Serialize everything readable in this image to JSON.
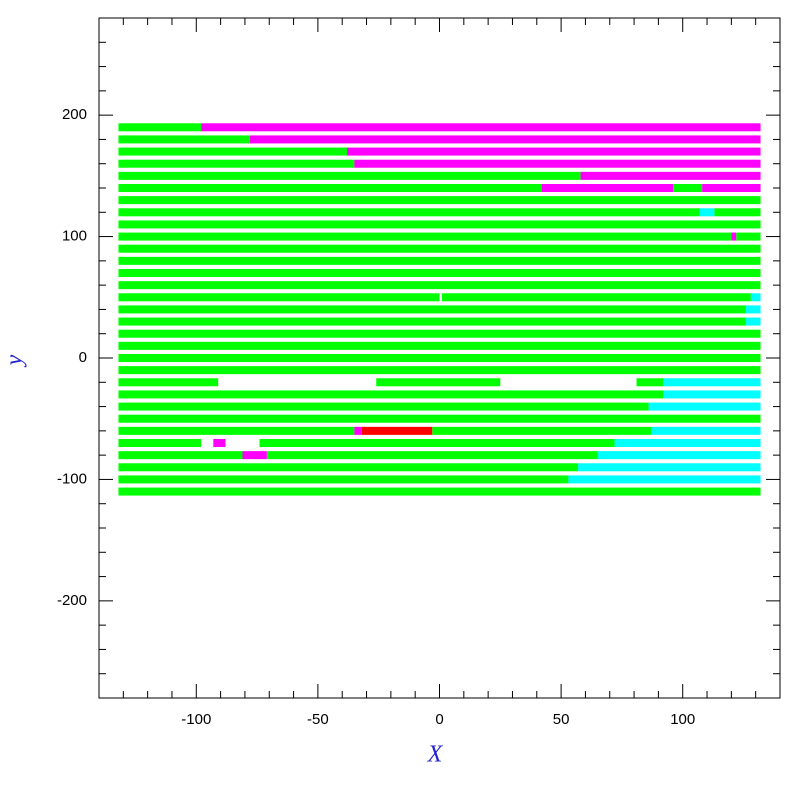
{
  "chart_data": {
    "type": "segment",
    "xlabel": "X",
    "ylabel": "y",
    "xlim": [
      -140,
      140
    ],
    "ylim": [
      -280,
      280
    ],
    "xticks": [
      -100,
      -50,
      0,
      50,
      100
    ],
    "yticks": [
      -200,
      -100,
      0,
      100,
      200
    ],
    "xminorticks": [
      -130,
      -120,
      -110,
      -90,
      -80,
      -70,
      -60,
      -40,
      -30,
      -20,
      -10,
      10,
      20,
      30,
      40,
      60,
      70,
      80,
      90,
      110,
      120,
      130
    ],
    "yminorticks": [
      -260,
      -240,
      -220,
      -180,
      -160,
      -140,
      -120,
      -80,
      -60,
      -40,
      -20,
      20,
      40,
      60,
      80,
      120,
      140,
      160,
      180,
      220,
      240,
      260
    ],
    "series": [
      {
        "color": "#00ff00",
        "segments": [
          [
            190,
            -132,
            -98
          ],
          [
            180,
            -132,
            -78
          ],
          [
            170,
            -132,
            -38
          ],
          [
            160,
            -132,
            -35
          ],
          [
            150,
            -132,
            58
          ],
          [
            140,
            -132,
            42
          ],
          [
            140,
            96,
            108
          ],
          [
            130,
            -132,
            132
          ],
          [
            120,
            -132,
            107
          ],
          [
            120,
            113,
            132
          ],
          [
            110,
            -132,
            132
          ],
          [
            100,
            -132,
            120
          ],
          [
            100,
            122,
            132
          ],
          [
            90,
            -132,
            132
          ],
          [
            80,
            -132,
            132
          ],
          [
            70,
            -132,
            132
          ],
          [
            60,
            -132,
            132
          ],
          [
            50,
            -132,
            0
          ],
          [
            50,
            1,
            128
          ],
          [
            40,
            -132,
            126
          ],
          [
            30,
            -132,
            126
          ],
          [
            20,
            -132,
            132
          ],
          [
            10,
            -132,
            132
          ],
          [
            0,
            -132,
            132
          ],
          [
            -10,
            -132,
            132
          ],
          [
            -20,
            -132,
            -91
          ],
          [
            -20,
            -26,
            25
          ],
          [
            -20,
            81,
            92
          ],
          [
            -30,
            -132,
            92
          ],
          [
            -40,
            -132,
            86
          ],
          [
            -50,
            -132,
            132
          ],
          [
            -60,
            -132,
            -35
          ],
          [
            -60,
            -3,
            87
          ],
          [
            -70,
            -132,
            -98
          ],
          [
            -70,
            -74,
            72
          ],
          [
            -80,
            -132,
            -81
          ],
          [
            -80,
            -71,
            65
          ],
          [
            -90,
            -132,
            57
          ],
          [
            -100,
            -132,
            53
          ],
          [
            -110,
            -132,
            132
          ]
        ]
      },
      {
        "color": "#ff00ff",
        "segments": [
          [
            190,
            -98,
            132
          ],
          [
            180,
            -78,
            132
          ],
          [
            170,
            -38,
            132
          ],
          [
            160,
            -35,
            132
          ],
          [
            150,
            58,
            132
          ],
          [
            140,
            42,
            96
          ],
          [
            140,
            108,
            132
          ],
          [
            100,
            120,
            122
          ],
          [
            -60,
            -35,
            -32
          ],
          [
            -70,
            -93,
            -88
          ],
          [
            -80,
            -81,
            -71
          ]
        ]
      },
      {
        "color": "#00ffff",
        "segments": [
          [
            120,
            107,
            113
          ],
          [
            50,
            128,
            132
          ],
          [
            40,
            126,
            132
          ],
          [
            30,
            126,
            132
          ],
          [
            -20,
            92,
            132
          ],
          [
            -30,
            92,
            132
          ],
          [
            -40,
            86,
            132
          ],
          [
            -60,
            87,
            132
          ],
          [
            -70,
            72,
            132
          ],
          [
            -80,
            65,
            132
          ],
          [
            -90,
            57,
            132
          ],
          [
            -100,
            53,
            132
          ]
        ]
      },
      {
        "color": "#ff0000",
        "segments": [
          [
            -60,
            -32,
            -3
          ]
        ]
      }
    ]
  }
}
